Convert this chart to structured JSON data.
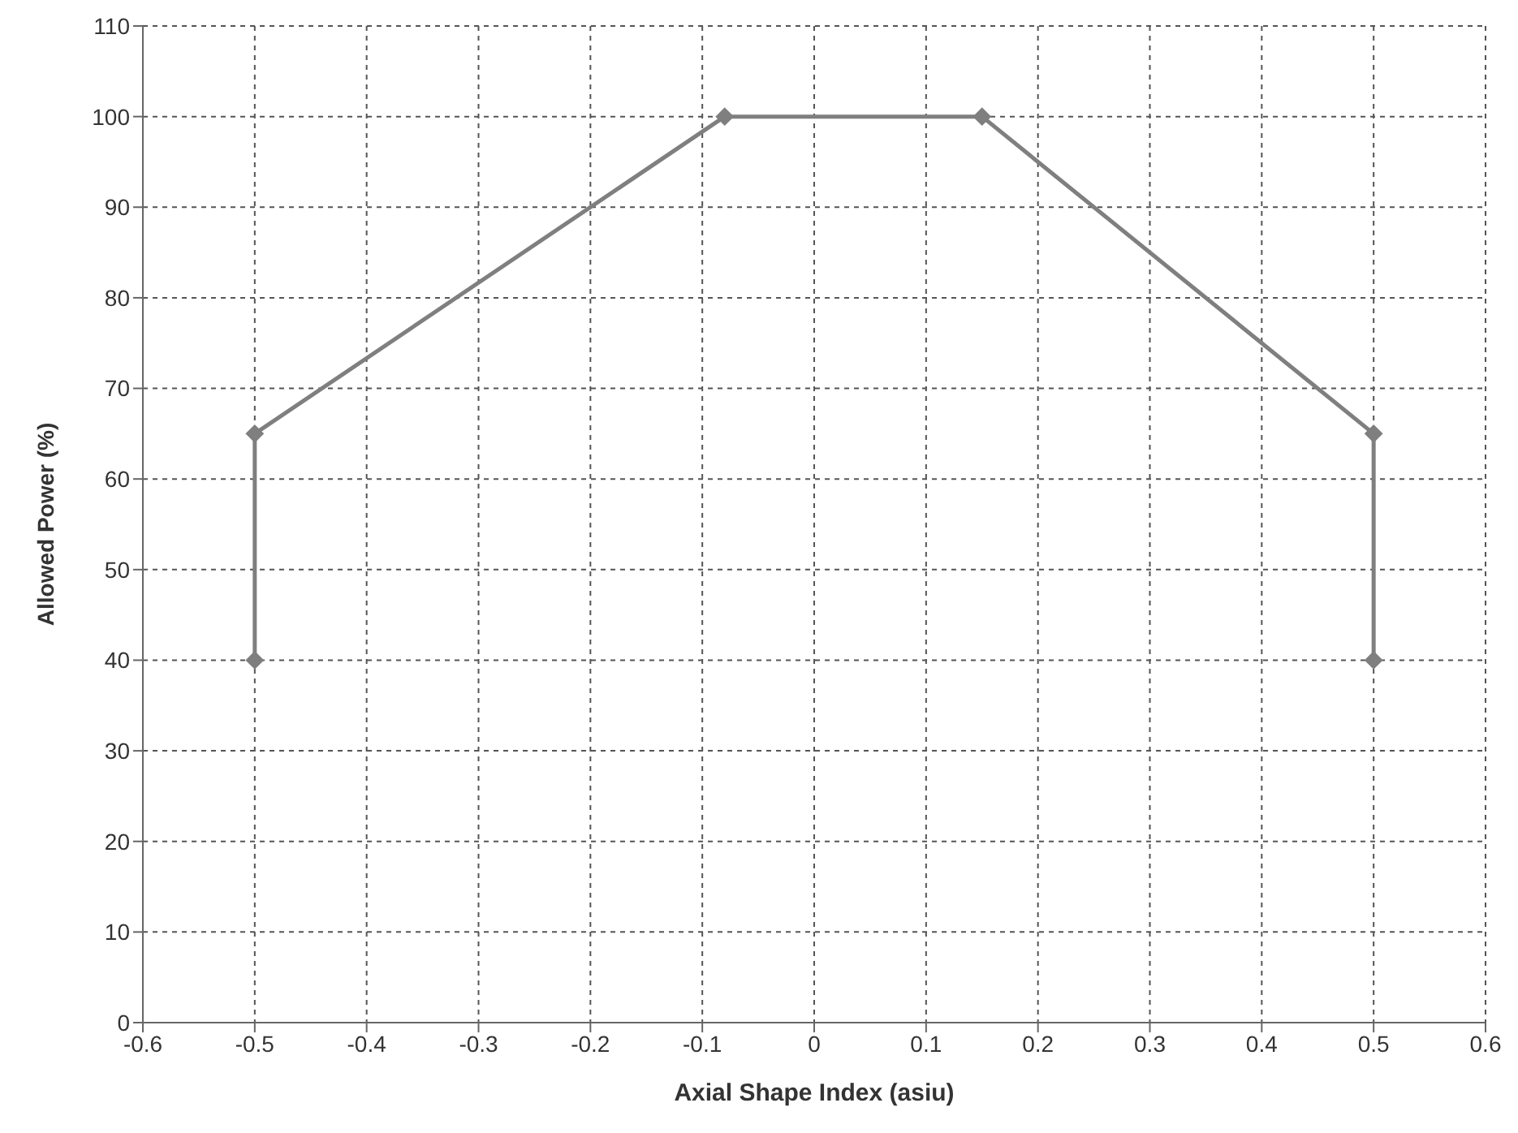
{
  "chart_data": {
    "type": "line",
    "xlabel": "Axial Shape Index (asiu)",
    "ylabel": "Allowed Power (%)",
    "x": [
      -0.5,
      -0.5,
      -0.08,
      0.15,
      0.5,
      0.5
    ],
    "series": [
      {
        "color": "#7f7f7f",
        "values": [
          40,
          65,
          100,
          100,
          65,
          40
        ]
      }
    ],
    "xlim": [
      -0.6,
      0.6
    ],
    "xticks": [
      -0.6,
      -0.5,
      -0.4,
      -0.3,
      -0.2,
      -0.1,
      0,
      0.1,
      0.2,
      0.3,
      0.4,
      0.5,
      0.6
    ],
    "ylim": [
      0,
      110
    ],
    "yticks": [
      0,
      10,
      20,
      30,
      40,
      50,
      60,
      70,
      80,
      90,
      100,
      110
    ],
    "grid": true,
    "marker": "diamond",
    "line_style": "solid"
  }
}
